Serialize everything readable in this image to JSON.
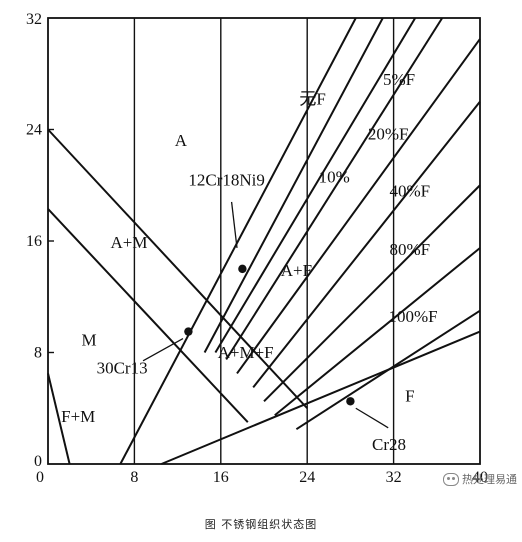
{
  "caption": "图 不锈钢组织状态图",
  "watermark": "热处理易通",
  "chart_data": {
    "type": "diagram",
    "xlim": [
      0,
      40
    ],
    "ylim": [
      0,
      32
    ],
    "x_ticks": [
      "0",
      "8",
      "16",
      "24",
      "32",
      "40"
    ],
    "y_ticks": [
      "0",
      "8",
      "16",
      "24",
      "32"
    ],
    "boundary_lines": [
      {
        "x1": 0,
        "y1": 24,
        "x2": 24,
        "y2": 4
      },
      {
        "x1": 0,
        "y1": 18.3,
        "x2": 18.5,
        "y2": 3
      },
      {
        "x1": 0,
        "y1": 6.5,
        "x2": 2,
        "y2": 0
      },
      {
        "x1": 6.7,
        "y1": 0,
        "x2": 28.5,
        "y2": 32
      },
      {
        "x1": 10.5,
        "y1": 0,
        "x2": 40,
        "y2": 9.5
      },
      {
        "x1": 14.5,
        "y1": 8,
        "x2": 31,
        "y2": 32
      },
      {
        "x1": 15.5,
        "y1": 8,
        "x2": 34,
        "y2": 32
      },
      {
        "x1": 16.5,
        "y1": 7.5,
        "x2": 36.5,
        "y2": 32
      },
      {
        "x1": 17.5,
        "y1": 6.5,
        "x2": 40,
        "y2": 30.5
      },
      {
        "x1": 19,
        "y1": 5.5,
        "x2": 40,
        "y2": 26
      },
      {
        "x1": 20,
        "y1": 4.5,
        "x2": 40,
        "y2": 20
      },
      {
        "x1": 21,
        "y1": 3.5,
        "x2": 40,
        "y2": 15.5
      },
      {
        "x1": 23,
        "y1": 2.5,
        "x2": 40,
        "y2": 11
      }
    ],
    "region_labels": [
      {
        "text": "A",
        "x": 12.3,
        "y": 22.8
      },
      {
        "text": "A+M",
        "x": 7.5,
        "y": 15.5
      },
      {
        "text": "M",
        "x": 3.8,
        "y": 8.5
      },
      {
        "text": "F+M",
        "x": 2.8,
        "y": 3
      },
      {
        "text": "A+F",
        "x": 23,
        "y": 13.5
      },
      {
        "text": "A+M+F",
        "x": 18.3,
        "y": 7.6
      },
      {
        "text": "F",
        "x": 33.5,
        "y": 4.5
      },
      {
        "text": "无F",
        "x": 24.5,
        "y": 25.8
      },
      {
        "text": "10%",
        "x": 26.5,
        "y": 20.2
      },
      {
        "text": "5%F",
        "x": 32.5,
        "y": 27.2
      },
      {
        "text": "20%F",
        "x": 31.5,
        "y": 23.3
      },
      {
        "text": "40%F",
        "x": 33.5,
        "y": 19.2
      },
      {
        "text": "80%F",
        "x": 33.5,
        "y": 15
      },
      {
        "text": "100%F",
        "x": 33.8,
        "y": 10.2
      }
    ],
    "points": [
      {
        "name": "12Cr18Ni9",
        "x": 18,
        "y": 14,
        "label_x": 13,
        "label_y": 20,
        "anchor_x": 17.5,
        "anchor_y": 15.5,
        "label_from_x": 17,
        "label_from_y": 18.8
      },
      {
        "name": "30Cr13",
        "x": 13,
        "y": 9.5,
        "label_x": 4.5,
        "label_y": 6.5,
        "anchor_x": 12.5,
        "anchor_y": 9.0,
        "label_from_x": 8.8,
        "label_from_y": 7.4
      },
      {
        "name": "Cr28",
        "x": 28,
        "y": 4.5,
        "label_x": 30,
        "label_y": 1.0,
        "anchor_x": 28.5,
        "anchor_y": 4.0,
        "label_from_x": 31.5,
        "label_from_y": 2.6
      }
    ]
  }
}
